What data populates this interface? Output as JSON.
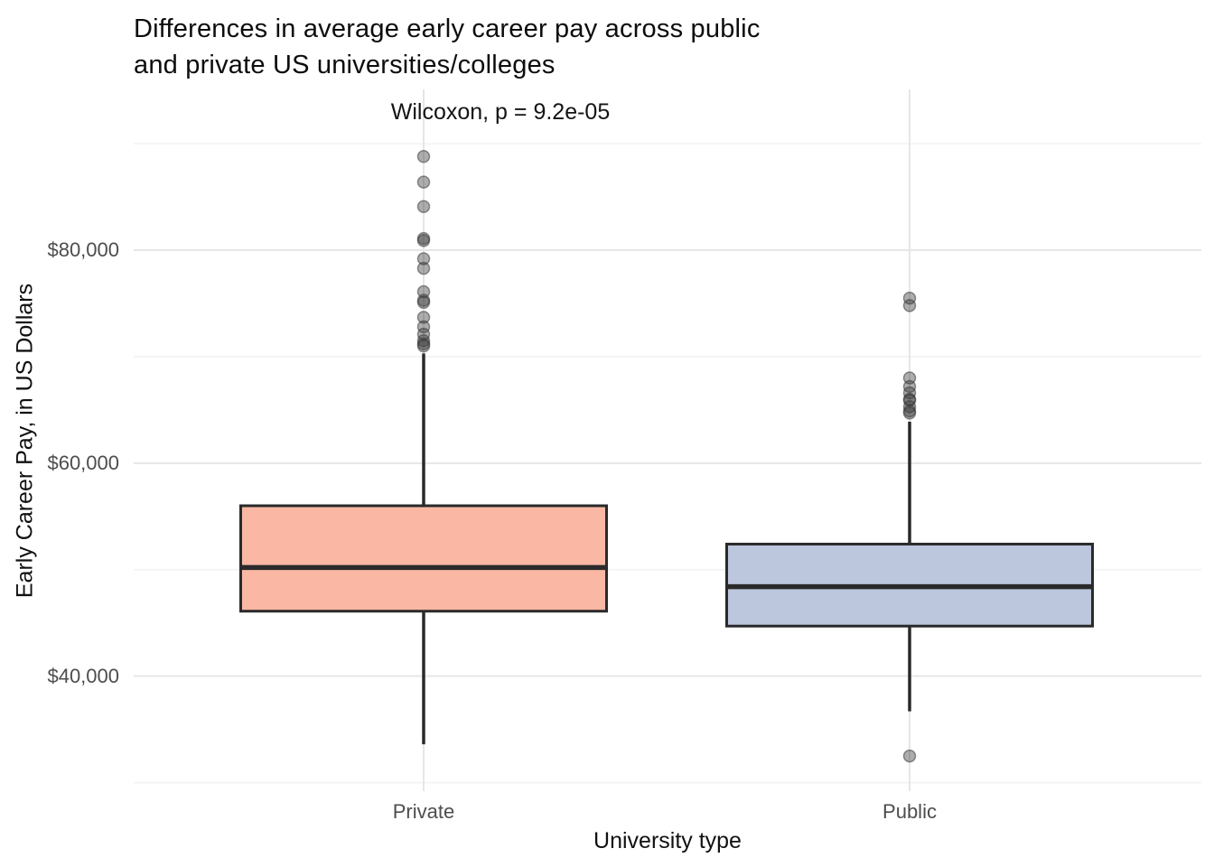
{
  "chart_data": {
    "type": "boxplot",
    "title": "Differences in average early career pay across public and private US universities/colleges",
    "title_lines": [
      "Differences in average early career pay across public",
      "and private US universities/colleges"
    ],
    "annotation": "Wilcoxon, p = 9.2e-05",
    "xlabel": "University type",
    "ylabel": "Early Career Pay, in US Dollars",
    "categories": [
      "Private",
      "Public"
    ],
    "ylim": [
      29200,
      95100
    ],
    "y_ticks": [
      {
        "value": 40000,
        "label": "$40,000"
      },
      {
        "value": 60000,
        "label": "$60,000"
      },
      {
        "value": 80000,
        "label": "$80,000"
      }
    ],
    "grid": {
      "show": true,
      "major_values": [
        40000,
        60000,
        80000
      ],
      "minor_values": [
        30000,
        50000,
        70000,
        90000
      ]
    },
    "legend": "none",
    "series": [
      {
        "name": "Private",
        "fill": "#fab8a4",
        "q1": 46100,
        "median": 50200,
        "q3": 56000,
        "whisker_low": 33600,
        "whisker_high": 70300,
        "outliers": [
          88800,
          86400,
          84100,
          81100,
          80900,
          79200,
          78300,
          76100,
          75300,
          75100,
          73700,
          72800,
          72100,
          71500,
          71200,
          71000
        ]
      },
      {
        "name": "Public",
        "fill": "#bcc6dd",
        "q1": 44700,
        "median": 48400,
        "q3": 52400,
        "whisker_low": 36700,
        "whisker_high": 63900,
        "outliers": [
          75500,
          74800,
          68000,
          67200,
          66600,
          66000,
          65900,
          65300,
          64900,
          64700,
          32500
        ]
      }
    ],
    "colors": {
      "background": "#ffffff",
      "box_outline": "#2a2a2a",
      "median_line": "#2a2a2a",
      "whisker": "#2a2a2a",
      "grid_major": "#e6e6e6",
      "grid_minor": "#f2f2f2",
      "outlier_fill": "rgba(60,60,60,0.42)",
      "outlier_stroke": "rgba(45,45,45,0.5)",
      "axis_text": "#4d4d4d",
      "title_text": "#0d0d0d"
    }
  }
}
